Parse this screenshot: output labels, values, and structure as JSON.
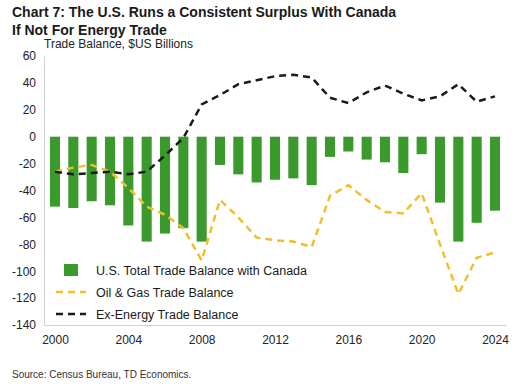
{
  "chart_data": {
    "type": "bar",
    "title": "Chart 7: The U.S. Runs a Consistent Surplus With Canada\nIf Not For Energy Trade",
    "ylabel": "Trade Balance, $US Billions",
    "source": "Source: Census Bureau, TD Economics.",
    "x": [
      2000,
      2001,
      2002,
      2003,
      2004,
      2005,
      2006,
      2007,
      2008,
      2009,
      2010,
      2011,
      2012,
      2013,
      2014,
      2015,
      2016,
      2017,
      2018,
      2019,
      2020,
      2021,
      2022,
      2023,
      2024
    ],
    "series": [
      {
        "name": "U.S. Total Trade Balance with Canada",
        "type": "bar",
        "color": "#3a9a2c",
        "values": [
          -52,
          -53,
          -48,
          -51,
          -66,
          -78,
          -72,
          -68,
          -78,
          -21,
          -28,
          -34,
          -32,
          -31,
          -36,
          -15,
          -11,
          -17,
          -19,
          -27,
          -13,
          -49,
          -78,
          -64,
          -55
        ]
      },
      {
        "name": "Oil & Gas Trade Balance",
        "type": "line",
        "line_style": "dashed",
        "color": "#f0bf2a",
        "values": [
          -26,
          -23,
          -21,
          -26,
          -38,
          -52,
          -58,
          -68,
          -92,
          -47,
          -60,
          -75,
          -77,
          -78,
          -82,
          -44,
          -36,
          -47,
          -56,
          -57,
          -42,
          -80,
          -117,
          -90,
          -86
        ]
      },
      {
        "name": "Ex-Energy Trade Balance",
        "type": "line",
        "line_style": "dashed",
        "color": "#1a1a1a",
        "values": [
          -26,
          -28,
          -27,
          -26,
          -28,
          -26,
          -14,
          -1,
          24,
          31,
          39,
          42,
          45,
          46,
          44,
          29,
          25,
          33,
          38,
          32,
          27,
          30,
          39,
          26,
          30
        ]
      }
    ],
    "xlim": [
      1999.4,
      2024.6
    ],
    "xticks": [
      2000,
      2004,
      2008,
      2012,
      2016,
      2020,
      2024
    ],
    "ylim": [
      -140,
      60
    ],
    "yticks": [
      -140,
      -120,
      -100,
      -80,
      -60,
      -40,
      -20,
      0,
      20,
      40,
      60
    ],
    "grid": false,
    "legend": "lower left"
  }
}
